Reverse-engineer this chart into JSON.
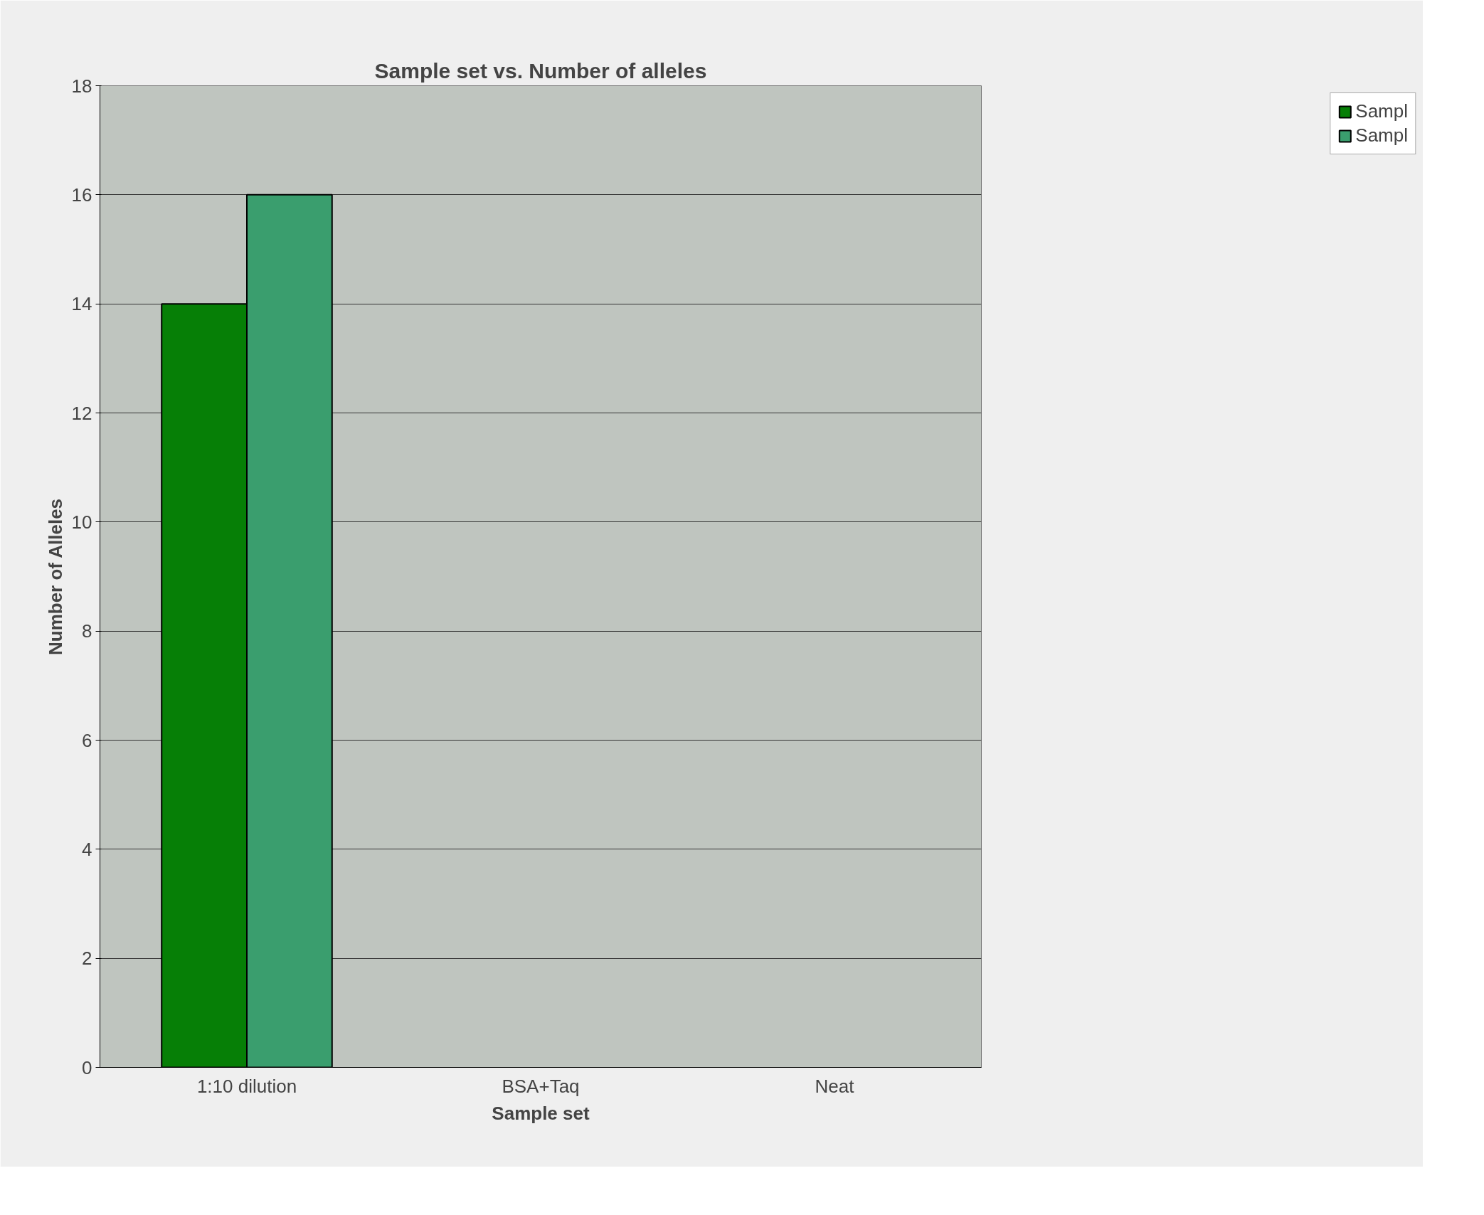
{
  "chart_data": {
    "type": "bar",
    "title": "Sample set vs. Number of alleles",
    "xlabel": "Sample set",
    "ylabel": "Number of Alleles",
    "categories": [
      "1:10 dilution",
      "BSA+Taq",
      "Neat"
    ],
    "series": [
      {
        "name": "Sampl",
        "color": "#067f06",
        "values": [
          14,
          null,
          null
        ]
      },
      {
        "name": "Sampl",
        "color": "#3a9e6e",
        "values": [
          16,
          null,
          null
        ]
      }
    ],
    "ylim": [
      0,
      18
    ],
    "yticks": [
      0,
      2,
      4,
      6,
      8,
      10,
      12,
      14,
      16,
      18
    ],
    "grid": "y",
    "legend": "right"
  }
}
